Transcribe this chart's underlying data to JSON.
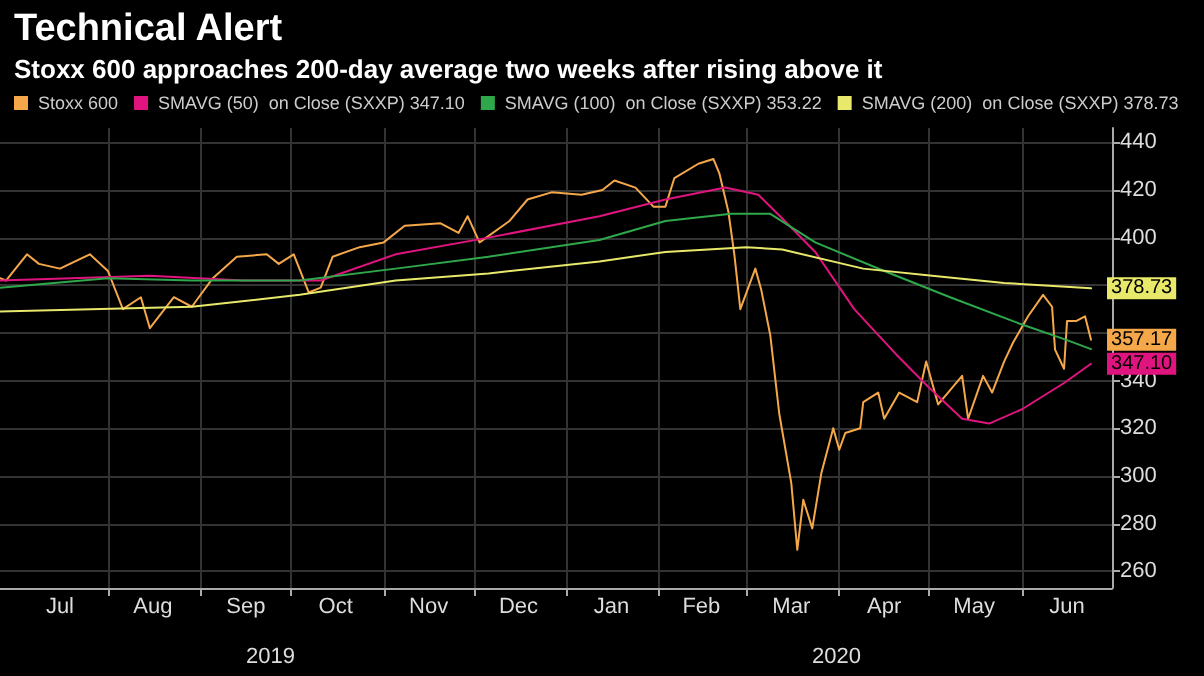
{
  "chart_data": {
    "type": "line",
    "title": "Technical Alert",
    "subtitle": "Stoxx 600 approaches 200-day average two weeks after rising above it",
    "series": [
      {
        "name": "Stoxx 600",
        "color": "#f5a84a",
        "x": [
          "2019-06-26",
          "2019-06-28",
          "2019-07-05",
          "2019-07-09",
          "2019-07-16",
          "2019-07-26",
          "2019-08-01",
          "2019-08-06",
          "2019-08-12",
          "2019-08-15",
          "2019-08-23",
          "2019-08-29",
          "2019-09-05",
          "2019-09-13",
          "2019-09-23",
          "2019-09-27",
          "2019-10-02",
          "2019-10-07",
          "2019-10-11",
          "2019-10-15",
          "2019-10-24",
          "2019-11-01",
          "2019-11-08",
          "2019-11-20",
          "2019-11-26",
          "2019-11-29",
          "2019-12-03",
          "2019-12-13",
          "2019-12-19",
          "2019-12-27",
          "2020-01-06",
          "2020-01-13",
          "2020-01-17",
          "2020-01-24",
          "2020-01-30",
          "2020-02-03",
          "2020-02-06",
          "2020-02-14",
          "2020-02-19",
          "2020-02-21",
          "2020-02-24",
          "2020-02-26",
          "2020-02-28",
          "2020-03-04",
          "2020-03-06",
          "2020-03-09",
          "2020-03-11",
          "2020-03-12",
          "2020-03-16",
          "2020-03-18",
          "2020-03-20",
          "2020-03-23",
          "2020-03-26",
          "2020-03-30",
          "2020-04-01",
          "2020-04-03",
          "2020-04-08",
          "2020-04-09",
          "2020-04-14",
          "2020-04-16",
          "2020-04-21",
          "2020-04-27",
          "2020-04-30",
          "2020-05-04",
          "2020-05-12",
          "2020-05-14",
          "2020-05-19",
          "2020-05-22",
          "2020-05-26",
          "2020-05-29",
          "2020-06-03",
          "2020-06-08",
          "2020-06-11",
          "2020-06-12",
          "2020-06-15",
          "2020-06-16",
          "2020-06-19",
          "2020-06-22",
          "2020-06-24"
        ],
        "values": [
          383,
          382,
          393,
          389,
          387,
          393,
          386,
          370,
          375,
          362,
          375,
          371,
          383,
          392,
          393,
          389,
          393,
          377,
          379,
          392,
          396,
          398,
          405,
          406,
          402,
          409,
          398,
          407,
          416,
          419,
          418,
          420,
          424,
          421,
          413,
          413,
          425,
          431,
          433,
          427,
          411,
          393,
          370,
          387,
          378,
          359,
          337,
          326,
          297,
          269,
          290,
          278,
          301,
          320,
          311,
          318,
          320,
          331,
          335,
          324,
          335,
          331,
          348,
          330,
          342,
          324,
          342,
          335,
          348,
          356,
          367,
          376,
          371,
          353,
          345,
          365,
          365,
          367,
          357.17
        ],
        "value_labels": [
          null,
          null,
          null,
          null,
          null,
          null,
          null,
          null,
          null,
          null,
          null,
          null,
          null,
          null,
          null,
          null,
          null,
          null,
          null,
          null,
          null,
          null,
          null,
          null,
          null,
          null,
          null,
          null,
          null,
          null,
          null,
          null,
          null,
          null,
          null,
          null,
          null,
          null,
          null,
          null,
          null,
          null,
          null,
          null,
          null,
          null,
          null,
          null,
          null,
          null,
          null,
          null,
          null,
          null,
          null,
          null,
          null,
          null,
          null,
          null,
          null,
          null,
          null,
          null,
          null,
          null,
          null,
          null,
          null,
          null,
          null,
          null,
          null,
          null,
          null,
          null,
          null,
          null,
          "357.17"
        ]
      },
      {
        "name": "SMAVG (50)  on Close (SXXP) 347.10",
        "color": "#e0147e",
        "x": [
          "2019-06-26",
          "2019-08-15",
          "2019-09-15",
          "2019-10-11",
          "2019-11-05",
          "2019-12-06",
          "2020-01-12",
          "2020-02-03",
          "2020-02-23",
          "2020-03-05",
          "2020-03-13",
          "2020-03-24",
          "2020-04-06",
          "2020-04-20",
          "2020-05-01",
          "2020-05-12",
          "2020-05-21",
          "2020-06-01",
          "2020-06-15",
          "2020-06-24"
        ],
        "values": [
          382,
          384,
          382,
          382,
          393,
          400,
          409,
          416,
          421,
          418,
          408,
          394,
          370,
          351,
          337,
          324,
          322,
          328,
          339,
          347.1
        ],
        "value_labels": [
          null,
          null,
          null,
          null,
          null,
          null,
          null,
          null,
          null,
          null,
          null,
          null,
          null,
          null,
          null,
          null,
          null,
          null,
          null,
          "347.10"
        ]
      },
      {
        "name": "SMAVG (100)  on Close (SXXP) 353.22",
        "color": "#2ea84a",
        "x": [
          "2019-06-26",
          "2019-08-01",
          "2019-08-29",
          "2019-10-04",
          "2019-11-05",
          "2019-12-06",
          "2020-01-12",
          "2020-02-03",
          "2020-02-25",
          "2020-03-09",
          "2020-03-24",
          "2020-04-16",
          "2020-05-08",
          "2020-05-31",
          "2020-06-16",
          "2020-06-24"
        ],
        "values": [
          379,
          383,
          382,
          382,
          387,
          392,
          399,
          407,
          410,
          410,
          398,
          386,
          375,
          364,
          357,
          353.22
        ]
      },
      {
        "name": "SMAVG (200)  on Close (SXXP) 378.73",
        "color": "#e8e86a",
        "x": [
          "2019-06-26",
          "2019-08-29",
          "2019-10-04",
          "2019-11-05",
          "2019-12-06",
          "2020-01-12",
          "2020-02-03",
          "2020-03-01",
          "2020-03-13",
          "2020-04-09",
          "2020-05-02",
          "2020-05-26",
          "2020-06-24"
        ],
        "values": [
          369,
          371,
          376,
          382,
          385,
          390,
          394,
          396,
          395,
          387,
          384,
          381,
          378.73
        ],
        "value_labels": [
          null,
          null,
          null,
          null,
          null,
          null,
          null,
          null,
          null,
          null,
          null,
          null,
          "378.73"
        ]
      }
    ],
    "xlim": [
      "2019-06-26",
      "2020-07-01"
    ],
    "xticks": [
      {
        "value": "2019-07-16",
        "label": "Jul"
      },
      {
        "value": "2019-08-01",
        "label": null
      },
      {
        "value": "2019-08-16",
        "label": "Aug"
      },
      {
        "value": "2019-09-01",
        "label": null
      },
      {
        "value": "2019-09-16",
        "label": "Sep"
      },
      {
        "value": "2019-10-01",
        "label": null
      },
      {
        "value": "2019-10-16",
        "label": "Oct"
      },
      {
        "value": "2019-11-01",
        "label": null
      },
      {
        "value": "2019-11-16",
        "label": "Nov"
      },
      {
        "value": "2019-12-01",
        "label": null
      },
      {
        "value": "2019-12-16",
        "label": "Dec"
      },
      {
        "value": "2020-01-01",
        "label": null
      },
      {
        "value": "2020-01-16",
        "label": "Jan"
      },
      {
        "value": "2020-02-01",
        "label": null
      },
      {
        "value": "2020-02-15",
        "label": "Feb"
      },
      {
        "value": "2020-03-01",
        "label": null
      },
      {
        "value": "2020-03-16",
        "label": "Mar"
      },
      {
        "value": "2020-04-01",
        "label": null
      },
      {
        "value": "2020-04-16",
        "label": "Apr"
      },
      {
        "value": "2020-05-01",
        "label": null
      },
      {
        "value": "2020-05-16",
        "label": "May"
      },
      {
        "value": "2020-06-01",
        "label": null
      },
      {
        "value": "2020-06-16",
        "label": "Jun"
      }
    ],
    "ylim": [
      253,
      446
    ],
    "yticks": [
      260,
      280,
      300,
      320,
      340,
      {
        "value": 360,
        "label": null
      },
      {
        "value": 380,
        "label": null
      },
      400,
      420,
      440
    ],
    "annotations": [
      "2019",
      "2020"
    ],
    "grid": true,
    "legend": "top left",
    "marker": "none",
    "line_style": "solid"
  }
}
